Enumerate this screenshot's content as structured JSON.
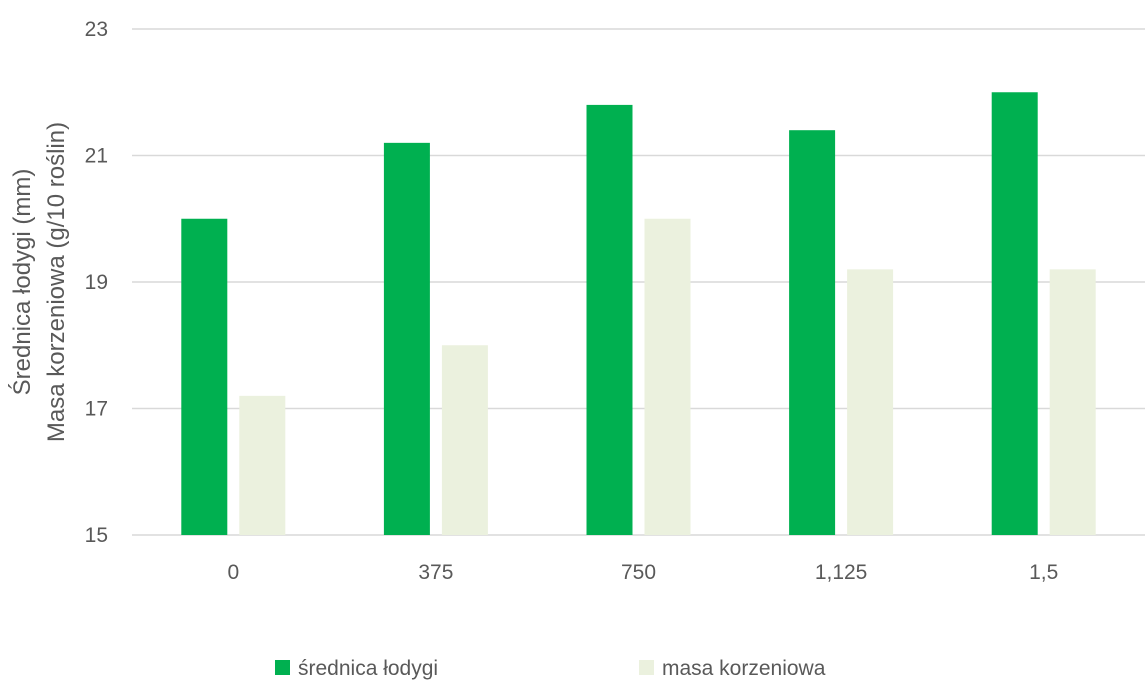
{
  "chart_data": {
    "type": "bar",
    "title": "",
    "xlabel": "",
    "ylabel": [
      "Średnica łodygi (mm)",
      "Masa korzeniowa (g/10 roślin)"
    ],
    "categories": [
      "0",
      "375",
      "750",
      "1,125",
      "1,5"
    ],
    "series": [
      {
        "name": "średnica łodygi",
        "color": "#00b050",
        "values": [
          20.0,
          21.2,
          21.8,
          21.4,
          22.0
        ]
      },
      {
        "name": "masa korzeniowa",
        "color": "#ebf1de",
        "values": [
          17.2,
          18.0,
          20.0,
          19.2,
          19.2
        ]
      }
    ],
    "ylim": [
      15,
      23
    ],
    "yticks": [
      15,
      17,
      19,
      21,
      23
    ],
    "grid": true,
    "legend": "bottom"
  }
}
